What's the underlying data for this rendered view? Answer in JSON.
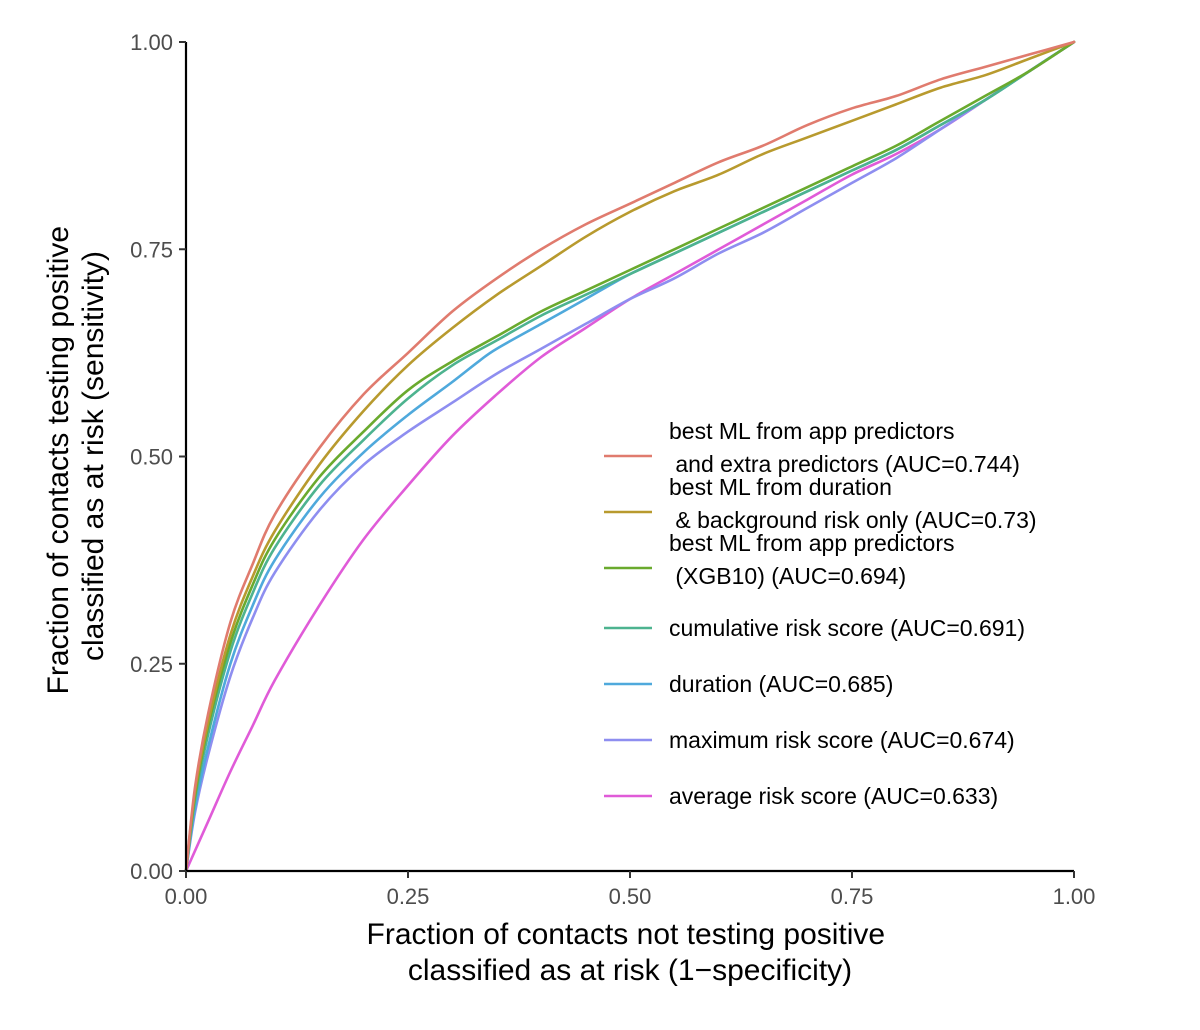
{
  "chart_data": {
    "type": "line",
    "title": "",
    "xlabel": [
      "Fraction of contacts not testing positive",
      "classified as at risk (1−specificity)"
    ],
    "ylabel": [
      "Fraction of contacts testing positive",
      "classified as at risk (sensitivity)"
    ],
    "xlim": [
      0,
      1
    ],
    "ylim": [
      0,
      1
    ],
    "x_ticks": [
      "0.00",
      "0.25",
      "0.50",
      "0.75",
      "1.00"
    ],
    "y_ticks": [
      "0.00",
      "0.25",
      "0.50",
      "0.75",
      "1.00"
    ],
    "grid": false,
    "legend_position": "right",
    "series": [
      {
        "name": [
          "best ML from app predictors",
          " and extra predictors (AUC=0.744)"
        ],
        "color": "#E07B6E",
        "points": [
          [
            0,
            0
          ],
          [
            0.01,
            0.1
          ],
          [
            0.025,
            0.19
          ],
          [
            0.05,
            0.3
          ],
          [
            0.075,
            0.37
          ],
          [
            0.1,
            0.43
          ],
          [
            0.15,
            0.51
          ],
          [
            0.2,
            0.575
          ],
          [
            0.25,
            0.625
          ],
          [
            0.3,
            0.675
          ],
          [
            0.35,
            0.715
          ],
          [
            0.4,
            0.75
          ],
          [
            0.45,
            0.78
          ],
          [
            0.5,
            0.805
          ],
          [
            0.55,
            0.83
          ],
          [
            0.6,
            0.855
          ],
          [
            0.65,
            0.875
          ],
          [
            0.7,
            0.9
          ],
          [
            0.75,
            0.92
          ],
          [
            0.8,
            0.935
          ],
          [
            0.85,
            0.955
          ],
          [
            0.9,
            0.97
          ],
          [
            0.95,
            0.985
          ],
          [
            1,
            1
          ]
        ]
      },
      {
        "name": [
          "best ML from duration",
          " & background risk only (AUC=0.73)"
        ],
        "color": "#B89A2E",
        "points": [
          [
            0,
            0
          ],
          [
            0.01,
            0.095
          ],
          [
            0.025,
            0.18
          ],
          [
            0.05,
            0.285
          ],
          [
            0.075,
            0.355
          ],
          [
            0.1,
            0.41
          ],
          [
            0.15,
            0.49
          ],
          [
            0.2,
            0.555
          ],
          [
            0.25,
            0.61
          ],
          [
            0.3,
            0.655
          ],
          [
            0.35,
            0.695
          ],
          [
            0.4,
            0.73
          ],
          [
            0.45,
            0.765
          ],
          [
            0.5,
            0.795
          ],
          [
            0.55,
            0.82
          ],
          [
            0.6,
            0.84
          ],
          [
            0.65,
            0.865
          ],
          [
            0.7,
            0.885
          ],
          [
            0.75,
            0.905
          ],
          [
            0.8,
            0.925
          ],
          [
            0.85,
            0.945
          ],
          [
            0.9,
            0.96
          ],
          [
            0.95,
            0.98
          ],
          [
            1,
            1
          ]
        ]
      },
      {
        "name": [
          "best ML from app predictors",
          " (XGB10) (AUC=0.694)"
        ],
        "color": "#6AAA2E",
        "points": [
          [
            0,
            0
          ],
          [
            0.01,
            0.09
          ],
          [
            0.025,
            0.175
          ],
          [
            0.05,
            0.275
          ],
          [
            0.075,
            0.345
          ],
          [
            0.1,
            0.4
          ],
          [
            0.15,
            0.475
          ],
          [
            0.2,
            0.53
          ],
          [
            0.25,
            0.58
          ],
          [
            0.3,
            0.615
          ],
          [
            0.35,
            0.645
          ],
          [
            0.4,
            0.675
          ],
          [
            0.45,
            0.7
          ],
          [
            0.5,
            0.725
          ],
          [
            0.55,
            0.75
          ],
          [
            0.6,
            0.775
          ],
          [
            0.65,
            0.8
          ],
          [
            0.7,
            0.825
          ],
          [
            0.75,
            0.85
          ],
          [
            0.8,
            0.875
          ],
          [
            0.85,
            0.905
          ],
          [
            0.9,
            0.935
          ],
          [
            0.95,
            0.965
          ],
          [
            1,
            1
          ]
        ]
      },
      {
        "name": [
          "cumulative risk score (AUC=0.691)"
        ],
        "color": "#4DB38F",
        "points": [
          [
            0,
            0
          ],
          [
            0.01,
            0.085
          ],
          [
            0.025,
            0.165
          ],
          [
            0.05,
            0.265
          ],
          [
            0.075,
            0.335
          ],
          [
            0.1,
            0.39
          ],
          [
            0.15,
            0.465
          ],
          [
            0.2,
            0.52
          ],
          [
            0.25,
            0.57
          ],
          [
            0.3,
            0.61
          ],
          [
            0.35,
            0.64
          ],
          [
            0.4,
            0.67
          ],
          [
            0.45,
            0.695
          ],
          [
            0.5,
            0.72
          ],
          [
            0.55,
            0.745
          ],
          [
            0.6,
            0.77
          ],
          [
            0.65,
            0.795
          ],
          [
            0.7,
            0.82
          ],
          [
            0.75,
            0.845
          ],
          [
            0.8,
            0.87
          ],
          [
            0.85,
            0.9
          ],
          [
            0.9,
            0.93
          ],
          [
            0.95,
            0.965
          ],
          [
            1,
            1
          ]
        ]
      },
      {
        "name": [
          "duration (AUC=0.685)"
        ],
        "color": "#4FA9DC",
        "points": [
          [
            0,
            0
          ],
          [
            0.01,
            0.075
          ],
          [
            0.025,
            0.15
          ],
          [
            0.05,
            0.25
          ],
          [
            0.075,
            0.32
          ],
          [
            0.1,
            0.375
          ],
          [
            0.15,
            0.45
          ],
          [
            0.2,
            0.505
          ],
          [
            0.25,
            0.55
          ],
          [
            0.3,
            0.59
          ],
          [
            0.33,
            0.615
          ],
          [
            0.35,
            0.63
          ],
          [
            0.4,
            0.66
          ],
          [
            0.45,
            0.69
          ],
          [
            0.5,
            0.72
          ],
          [
            0.55,
            0.745
          ],
          [
            0.6,
            0.77
          ],
          [
            0.65,
            0.795
          ],
          [
            0.7,
            0.82
          ],
          [
            0.75,
            0.845
          ],
          [
            0.8,
            0.87
          ],
          [
            0.85,
            0.9
          ],
          [
            0.9,
            0.93
          ],
          [
            0.95,
            0.965
          ],
          [
            1,
            1
          ]
        ]
      },
      {
        "name": [
          "maximum risk score (AUC=0.674)"
        ],
        "color": "#8E8EF0",
        "points": [
          [
            0,
            0
          ],
          [
            0.01,
            0.07
          ],
          [
            0.025,
            0.14
          ],
          [
            0.05,
            0.235
          ],
          [
            0.075,
            0.305
          ],
          [
            0.1,
            0.36
          ],
          [
            0.15,
            0.435
          ],
          [
            0.2,
            0.49
          ],
          [
            0.25,
            0.53
          ],
          [
            0.3,
            0.565
          ],
          [
            0.35,
            0.6
          ],
          [
            0.4,
            0.63
          ],
          [
            0.45,
            0.66
          ],
          [
            0.5,
            0.69
          ],
          [
            0.55,
            0.715
          ],
          [
            0.6,
            0.745
          ],
          [
            0.65,
            0.77
          ],
          [
            0.7,
            0.8
          ],
          [
            0.75,
            0.83
          ],
          [
            0.8,
            0.86
          ],
          [
            0.85,
            0.895
          ],
          [
            0.9,
            0.93
          ],
          [
            0.95,
            0.965
          ],
          [
            1,
            1
          ]
        ]
      },
      {
        "name": [
          "average risk score (AUC=0.633)"
        ],
        "color": "#E05BD8",
        "points": [
          [
            0,
            0
          ],
          [
            0.025,
            0.06
          ],
          [
            0.05,
            0.12
          ],
          [
            0.075,
            0.175
          ],
          [
            0.1,
            0.23
          ],
          [
            0.15,
            0.32
          ],
          [
            0.2,
            0.4
          ],
          [
            0.25,
            0.465
          ],
          [
            0.3,
            0.525
          ],
          [
            0.35,
            0.575
          ],
          [
            0.4,
            0.62
          ],
          [
            0.45,
            0.655
          ],
          [
            0.5,
            0.69
          ],
          [
            0.55,
            0.72
          ],
          [
            0.6,
            0.75
          ],
          [
            0.65,
            0.78
          ],
          [
            0.7,
            0.81
          ],
          [
            0.75,
            0.84
          ],
          [
            0.8,
            0.865
          ],
          [
            0.85,
            0.895
          ],
          [
            0.9,
            0.93
          ],
          [
            0.95,
            0.965
          ],
          [
            1,
            1
          ]
        ]
      }
    ]
  }
}
